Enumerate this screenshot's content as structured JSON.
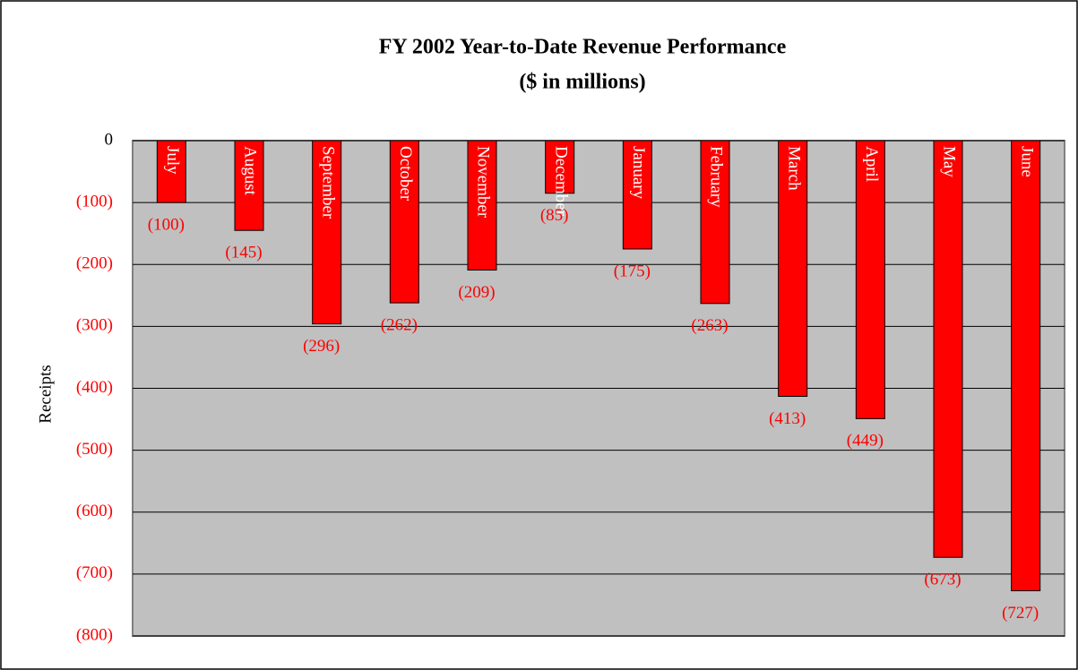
{
  "chart_data": {
    "type": "bar",
    "title": "FY 2002 Year-to-Date Revenue Performance",
    "subtitle": "($ in millions)",
    "y_axis_label": "Receipts",
    "categories": [
      "July",
      "August",
      "September",
      "October",
      "November",
      "December",
      "January",
      "February",
      "March",
      "April",
      "May",
      "June"
    ],
    "values": [
      -100,
      -145,
      -296,
      -262,
      -209,
      -85,
      -175,
      -263,
      -413,
      -449,
      -673,
      -727
    ],
    "value_labels": [
      "(100)",
      "(145)",
      "(296)",
      "(262)",
      "(209)",
      "(85)",
      "(175)",
      "(263)",
      "(413)",
      "(449)",
      "(673)",
      "(727)"
    ],
    "color": "#ff0000",
    "ylim": [
      -800,
      0
    ],
    "yticks": [
      0,
      {
        "value": -100,
        "label": "(100)"
      },
      {
        "value": -200,
        "label": "(200)"
      },
      {
        "value": -300,
        "label": "(300)"
      },
      {
        "value": -400,
        "label": "(400)"
      },
      {
        "value": -500,
        "label": "(500)"
      },
      {
        "value": -600,
        "label": "(600)"
      },
      {
        "value": -700,
        "label": "(700)"
      },
      {
        "value": -800,
        "label": "(800)"
      }
    ],
    "grid": true
  }
}
